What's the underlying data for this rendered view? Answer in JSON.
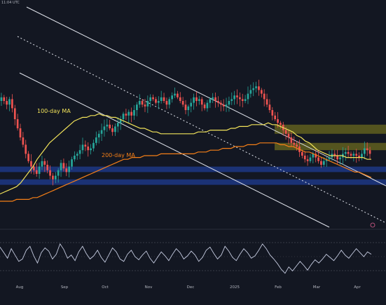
{
  "header": {
    "timestamp": "11:04 UTC"
  },
  "colors": {
    "background": "#131722",
    "candle_up": "#26a69a",
    "candle_down": "#ef5350",
    "ma100": "#f2e35a",
    "ma200": "#f57f17",
    "channel": "#e0e3eb",
    "resistance_zone": "#6b6a1f",
    "support_zone": "#1f3f99",
    "rsi_line": "#c5cbe0"
  },
  "chart_data": [
    {
      "type": "line",
      "subtype": "candlestick",
      "x_ticks": [
        "Aug",
        "Sep",
        "Oct",
        "Nov",
        "Dec",
        "2025",
        "Feb",
        "Mar",
        "Apr"
      ],
      "annotations": [
        {
          "text": "100-day MA",
          "color": "#f2e35a"
        },
        {
          "text": "200-day MA",
          "color": "#f57f17"
        }
      ],
      "price_close": [
        0.62,
        0.6,
        0.58,
        0.61,
        0.56,
        0.5,
        0.45,
        0.4,
        0.36,
        0.31,
        0.27,
        0.24,
        0.22,
        0.2,
        0.24,
        0.27,
        0.25,
        0.22,
        0.19,
        0.17,
        0.19,
        0.22,
        0.26,
        0.23,
        0.21,
        0.24,
        0.28,
        0.3,
        0.31,
        0.33,
        0.36,
        0.35,
        0.33,
        0.34,
        0.37,
        0.4,
        0.42,
        0.44,
        0.46,
        0.47,
        0.45,
        0.43,
        0.46,
        0.48,
        0.5,
        0.53,
        0.52,
        0.54,
        0.52,
        0.55,
        0.58,
        0.6,
        0.58,
        0.57,
        0.6,
        0.62,
        0.61,
        0.59,
        0.6,
        0.62,
        0.6,
        0.58,
        0.61,
        0.63,
        0.64,
        0.62,
        0.6,
        0.58,
        0.55,
        0.57,
        0.59,
        0.62,
        0.6,
        0.61,
        0.58,
        0.56,
        0.59,
        0.61,
        0.62,
        0.6,
        0.59,
        0.58,
        0.57,
        0.58,
        0.6,
        0.61,
        0.63,
        0.62,
        0.61,
        0.6,
        0.61,
        0.64,
        0.66,
        0.67,
        0.68,
        0.66,
        0.64,
        0.61,
        0.58,
        0.55,
        0.52,
        0.5,
        0.48,
        0.47,
        0.44,
        0.42,
        0.4,
        0.37,
        0.36,
        0.35,
        0.32,
        0.3,
        0.28,
        0.27,
        0.29,
        0.31,
        0.29,
        0.27,
        0.25,
        0.27,
        0.28,
        0.29,
        0.31,
        0.3,
        0.28,
        0.29,
        0.31,
        0.32,
        0.31,
        0.3,
        0.31,
        0.3,
        0.29,
        0.31,
        0.34,
        0.33,
        0.31
      ],
      "ma100": [
        0.09,
        0.1,
        0.11,
        0.12,
        0.13,
        0.15,
        0.18,
        0.21,
        0.24,
        0.28,
        0.31,
        0.34,
        0.37,
        0.39,
        0.41,
        0.43,
        0.45,
        0.47,
        0.49,
        0.5,
        0.51,
        0.51,
        0.52,
        0.52,
        0.53,
        0.52,
        0.52,
        0.51,
        0.51,
        0.5,
        0.49,
        0.48,
        0.47,
        0.46,
        0.45,
        0.45,
        0.44,
        0.43,
        0.43,
        0.42,
        0.42,
        0.42,
        0.42,
        0.42,
        0.42,
        0.42,
        0.42,
        0.42,
        0.43,
        0.43,
        0.43,
        0.44,
        0.44,
        0.44,
        0.44,
        0.44,
        0.45,
        0.45,
        0.46,
        0.46,
        0.46,
        0.47,
        0.47,
        0.47,
        0.47,
        0.48,
        0.47,
        0.47,
        0.46,
        0.45,
        0.44,
        0.43,
        0.41,
        0.4,
        0.38,
        0.37,
        0.35,
        0.33,
        0.32,
        0.31,
        0.3,
        0.3,
        0.3,
        0.3,
        0.29,
        0.29,
        0.29,
        0.29,
        0.29,
        0.28,
        0.28
      ],
      "ma200": [
        0.05,
        0.05,
        0.05,
        0.05,
        0.06,
        0.06,
        0.06,
        0.06,
        0.07,
        0.07,
        0.08,
        0.09,
        0.1,
        0.11,
        0.12,
        0.13,
        0.14,
        0.15,
        0.16,
        0.17,
        0.18,
        0.19,
        0.2,
        0.21,
        0.22,
        0.23,
        0.24,
        0.25,
        0.26,
        0.27,
        0.28,
        0.28,
        0.29,
        0.29,
        0.29,
        0.3,
        0.3,
        0.3,
        0.3,
        0.31,
        0.31,
        0.31,
        0.31,
        0.31,
        0.31,
        0.31,
        0.31,
        0.31,
        0.32,
        0.32,
        0.32,
        0.33,
        0.33,
        0.33,
        0.34,
        0.34,
        0.34,
        0.35,
        0.35,
        0.35,
        0.36,
        0.36,
        0.36,
        0.37,
        0.37,
        0.37,
        0.37,
        0.37,
        0.36,
        0.36,
        0.35,
        0.35,
        0.34,
        0.33,
        0.32,
        0.32,
        0.31,
        0.3,
        0.29,
        0.28,
        0.27,
        0.26,
        0.25,
        0.24,
        0.23,
        0.22,
        0.21,
        0.21,
        0.2,
        0.19,
        0.18
      ],
      "resistance_zones": [
        [
          0.42,
          0.47
        ],
        [
          0.33,
          0.37
        ]
      ],
      "support_zones": [
        [
          0.21,
          0.24
        ],
        [
          0.14,
          0.17
        ]
      ]
    },
    {
      "type": "line",
      "name_shown": "",
      "values": [
        62,
        55,
        48,
        60,
        52,
        44,
        47,
        58,
        63,
        51,
        42,
        55,
        61,
        57,
        47,
        53,
        66,
        59,
        48,
        52,
        45,
        56,
        63,
        54,
        47,
        51,
        58,
        49,
        43,
        52,
        61,
        56,
        47,
        44,
        53,
        58,
        50,
        46,
        52,
        57,
        48,
        42,
        49,
        56,
        51,
        45,
        53,
        60,
        55,
        47,
        51,
        57,
        52,
        44,
        49,
        58,
        62,
        54,
        47,
        52,
        63,
        57,
        49,
        45,
        53,
        60,
        55,
        48,
        51,
        58,
        66,
        60,
        52,
        47,
        41,
        34,
        29,
        37,
        32,
        38,
        44,
        39,
        33,
        40,
        46,
        42,
        47,
        53,
        49,
        45,
        51,
        58,
        52,
        48,
        54,
        60,
        55,
        50,
        56,
        53
      ],
      "ylim": [
        20,
        80
      ],
      "reference_lines": [
        70,
        30
      ]
    }
  ]
}
